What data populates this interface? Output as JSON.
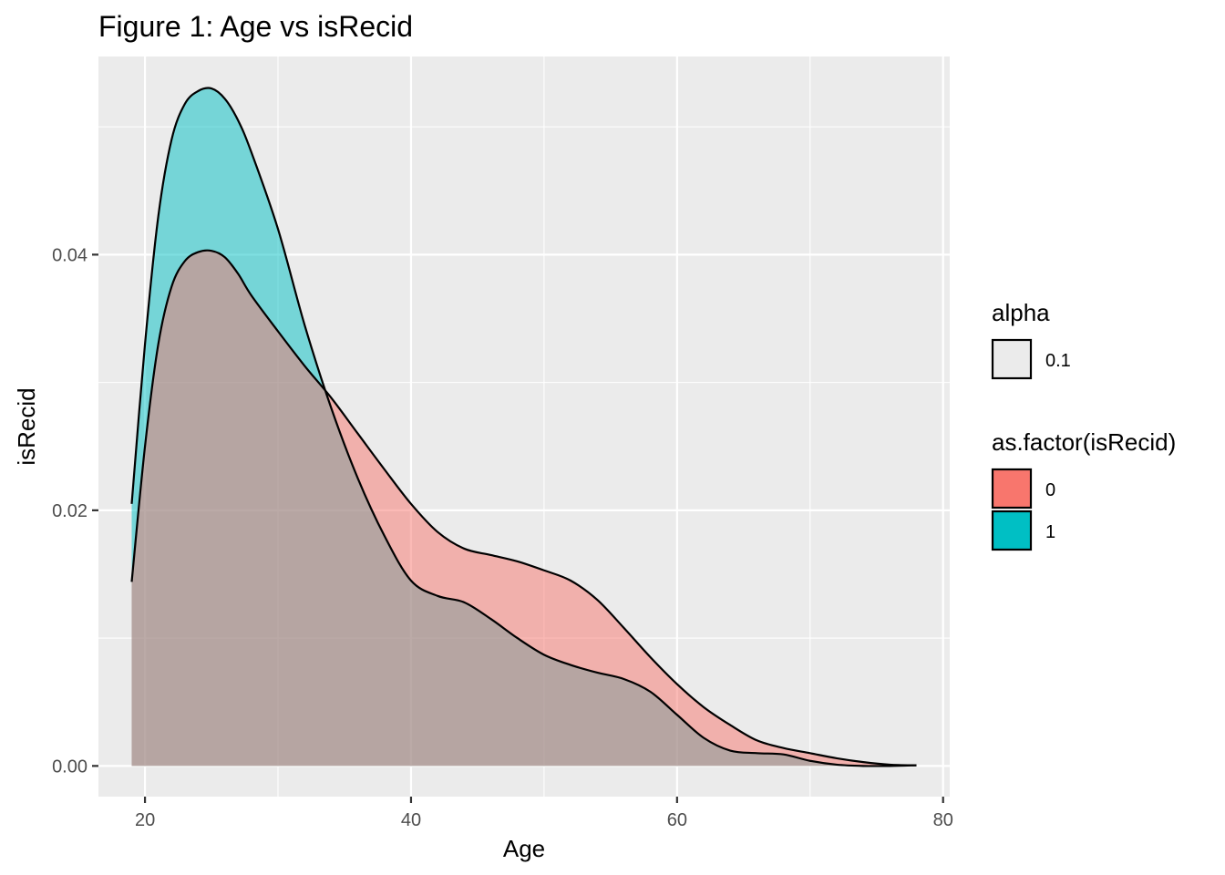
{
  "chart_data": {
    "type": "area",
    "title": "Figure 1: Age vs isRecid",
    "xlabel": "Age",
    "ylabel": "isRecid",
    "xlim": [
      16.5,
      80.5
    ],
    "ylim": [
      -0.0024,
      0.0555
    ],
    "x_ticks": [
      20,
      40,
      60,
      80
    ],
    "x_tick_labels": [
      "20",
      "40",
      "60",
      "80"
    ],
    "y_ticks": [
      0.0,
      0.02,
      0.04
    ],
    "y_tick_labels": [
      "0.00",
      "0.02",
      "0.04"
    ],
    "grid": true,
    "legend_position": "right",
    "legends": [
      {
        "title": "alpha",
        "entries": [
          {
            "label": "0.1",
            "color": "#ebebeb"
          }
        ]
      },
      {
        "title": "as.factor(isRecid)",
        "entries": [
          {
            "label": "0",
            "color": "#F8766D"
          },
          {
            "label": "1",
            "color": "#00BFC4"
          }
        ]
      }
    ],
    "series": [
      {
        "name": "0",
        "color": "#F8766D",
        "points": [
          [
            19,
            0.0144
          ],
          [
            20,
            0.025
          ],
          [
            21,
            0.033
          ],
          [
            22,
            0.0375
          ],
          [
            23,
            0.0395
          ],
          [
            24,
            0.0402
          ],
          [
            25,
            0.0403
          ],
          [
            26,
            0.0398
          ],
          [
            27,
            0.0385
          ],
          [
            28,
            0.0368
          ],
          [
            30,
            0.034
          ],
          [
            32,
            0.0313
          ],
          [
            34,
            0.0288
          ],
          [
            36,
            0.026
          ],
          [
            38,
            0.0232
          ],
          [
            40,
            0.0205
          ],
          [
            42,
            0.0183
          ],
          [
            44,
            0.017
          ],
          [
            46,
            0.0165
          ],
          [
            48,
            0.016
          ],
          [
            50,
            0.0153
          ],
          [
            52,
            0.0145
          ],
          [
            54,
            0.013
          ],
          [
            56,
            0.0108
          ],
          [
            58,
            0.0085
          ],
          [
            60,
            0.0064
          ],
          [
            62,
            0.0046
          ],
          [
            64,
            0.0032
          ],
          [
            66,
            0.002
          ],
          [
            68,
            0.0014
          ],
          [
            70,
            0.001
          ],
          [
            72,
            0.0006
          ],
          [
            74,
            0.0003
          ],
          [
            76,
            0.0001
          ],
          [
            78,
            5e-05
          ]
        ]
      },
      {
        "name": "1",
        "color": "#00BFC4",
        "points": [
          [
            19,
            0.0205
          ],
          [
            20,
            0.033
          ],
          [
            21,
            0.043
          ],
          [
            22,
            0.049
          ],
          [
            23,
            0.0518
          ],
          [
            24,
            0.0528
          ],
          [
            25,
            0.053
          ],
          [
            26,
            0.0522
          ],
          [
            27,
            0.0505
          ],
          [
            28,
            0.048
          ],
          [
            30,
            0.042
          ],
          [
            32,
            0.0345
          ],
          [
            34,
            0.028
          ],
          [
            36,
            0.0225
          ],
          [
            38,
            0.018
          ],
          [
            40,
            0.0145
          ],
          [
            42,
            0.0133
          ],
          [
            44,
            0.0128
          ],
          [
            46,
            0.0115
          ],
          [
            48,
            0.01
          ],
          [
            50,
            0.0087
          ],
          [
            52,
            0.0079
          ],
          [
            54,
            0.0073
          ],
          [
            56,
            0.0068
          ],
          [
            58,
            0.0058
          ],
          [
            60,
            0.004
          ],
          [
            62,
            0.0022
          ],
          [
            64,
            0.0012
          ],
          [
            66,
            0.001
          ],
          [
            68,
            0.0009
          ],
          [
            70,
            0.0004
          ],
          [
            72,
            0.0001
          ],
          [
            74,
            0.0
          ],
          [
            76,
            0.0
          ],
          [
            78,
            5e-05
          ]
        ]
      }
    ]
  }
}
